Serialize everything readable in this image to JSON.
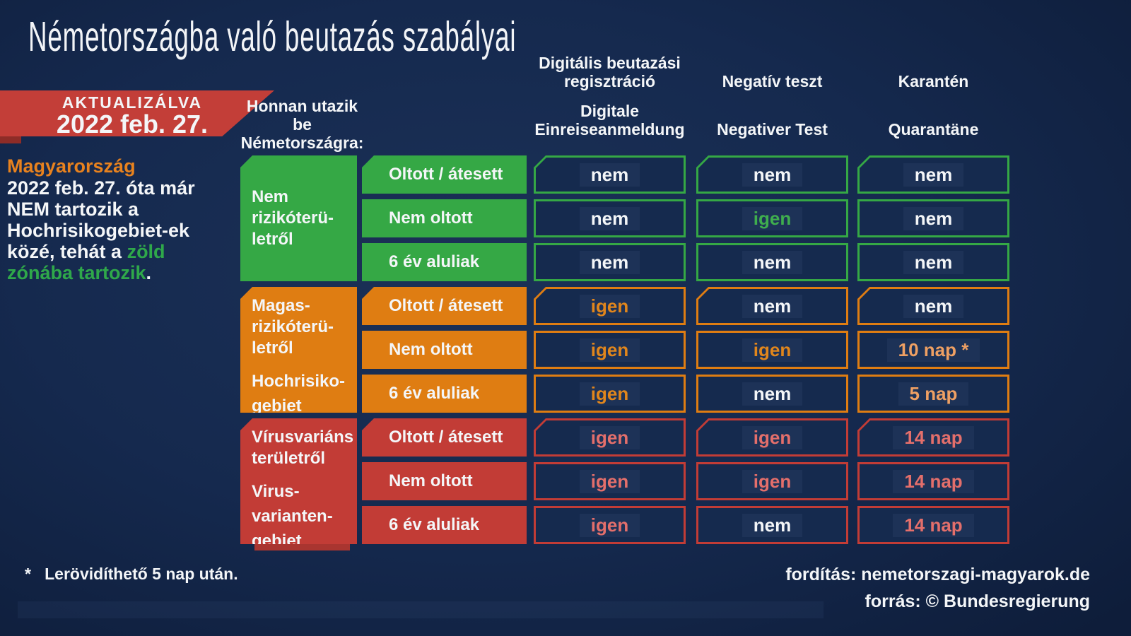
{
  "title": "Németországba való beutazás szabályai",
  "updated_banner": {
    "label": "AKTUALIZÁLVA",
    "date": "2022 feb. 27."
  },
  "origin_header": "Honnan utazik\nbe\nNémetországra:",
  "note_left": {
    "title": "Magyarország",
    "line1": "2022 feb. 27. óta már",
    "line2": "NEM tartozik a",
    "line3": "Hochrisikogebiet-ek",
    "line4_white": "közé, tehát a ",
    "line4_green": "zöld",
    "line5_green": "zónába tartozik",
    "line5_white": "."
  },
  "columns": [
    {
      "hu": "Digitális beutazási\nregisztráció",
      "de": "Digitale\nEinreiseanmeldung"
    },
    {
      "hu": "Negatív teszt",
      "de": "Negativer Test"
    },
    {
      "hu": "Karantén",
      "de": "Quarantäne"
    }
  ],
  "groups": [
    {
      "zone_hu": "Nem\nrizikóterü-\nletről",
      "zone_de": "",
      "rows": [
        {
          "label": "Oltott / átesett",
          "cells": [
            "nem",
            "nem",
            "nem"
          ]
        },
        {
          "label": "Nem oltott",
          "cells": [
            "nem",
            "igen",
            "nem"
          ]
        },
        {
          "label": "6 év aluliak",
          "cells": [
            "nem",
            "nem",
            "nem"
          ]
        }
      ]
    },
    {
      "zone_hu": "Magas-\nrizikóterü-\nletről",
      "zone_de": "Hochrisiko-\ngebiet",
      "rows": [
        {
          "label": "Oltott / átesett",
          "cells": [
            "igen",
            "nem",
            "nem"
          ]
        },
        {
          "label": "Nem oltott",
          "cells": [
            "igen",
            "igen",
            "10 nap *"
          ]
        },
        {
          "label": "6  év aluliak",
          "cells": [
            "igen",
            "nem",
            "5 nap"
          ]
        }
      ]
    },
    {
      "zone_hu": "Vírusvariáns\nterületről",
      "zone_de": "Virus-\nvarianten-\ngebiet",
      "rows": [
        {
          "label": "Oltott / átesett",
          "cells": [
            "igen",
            "igen",
            "14 nap"
          ]
        },
        {
          "label": "Nem oltott",
          "cells": [
            "igen",
            "igen",
            "14 nap"
          ]
        },
        {
          "label": "6 év aluliak",
          "cells": [
            "igen",
            "nem",
            "14 nap"
          ]
        }
      ]
    }
  ],
  "footnote": "*   Lerövidíthető 5 nap után.",
  "credits": {
    "translation": "fordítás: nemetorszagi-magyarok.de",
    "source": "forrás: © Bundesregierung"
  },
  "colors": {
    "background": "#14274a",
    "green_zone": "#35a845",
    "orange_zone": "#df7d12",
    "red_zone": "#c23c36",
    "banner_red": "#c33e38",
    "accent_green_text": "#3fae4e",
    "accent_orange_text": "#e1861c",
    "accent_orange_days_text": "#efa063",
    "accent_red_text": "#e46f6b",
    "note_orange": "#e8821e",
    "note_green": "#2fa84a",
    "cell_fill": "#152a4e",
    "text_white": "#f4f6f8"
  }
}
